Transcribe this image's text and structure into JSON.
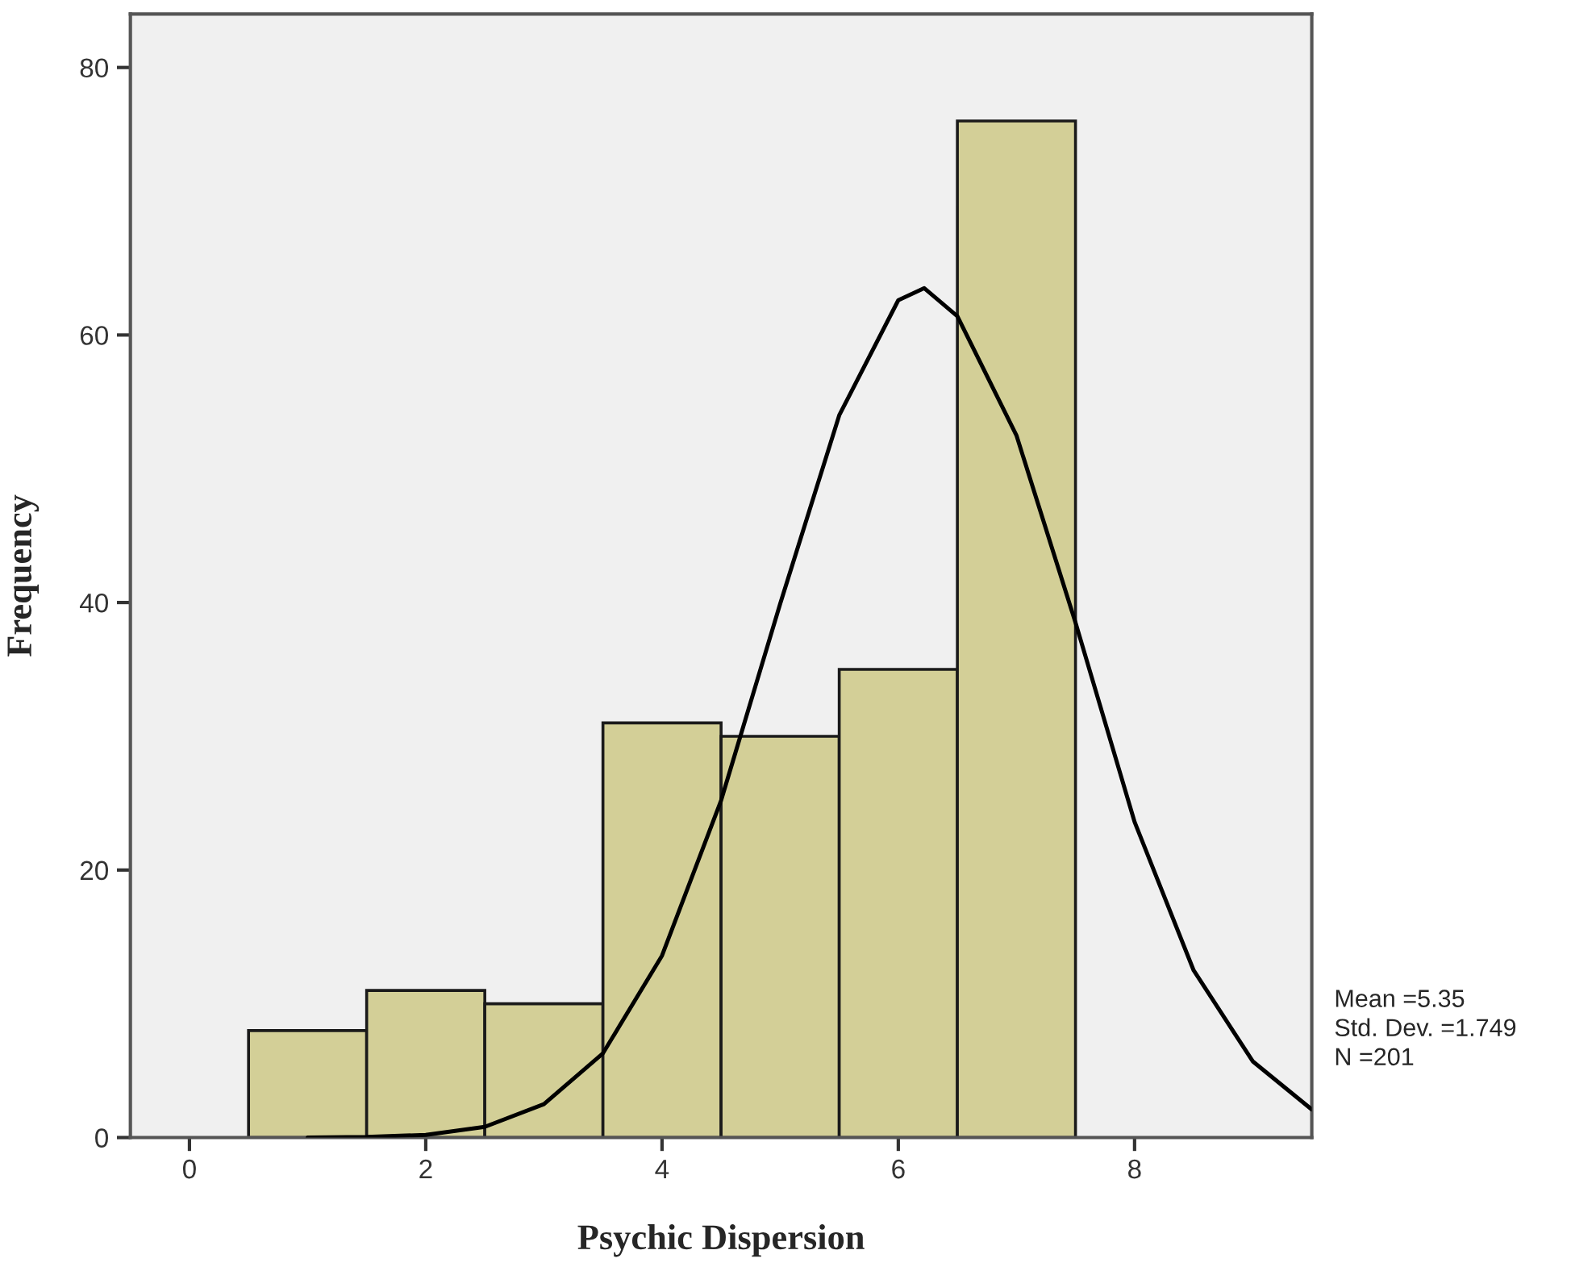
{
  "chart_data": {
    "type": "histogram",
    "xlabel": "Psychic Dispersion",
    "ylabel": "Frequency",
    "bins": [
      0.5,
      1.5,
      2.5,
      3.5,
      4.5,
      5.5,
      6.5,
      7.5
    ],
    "values": [
      8,
      11,
      10,
      31,
      30,
      35,
      76
    ],
    "color": "#d3cf97",
    "series": [
      {
        "type": "line",
        "color": "#000000",
        "x": [
          1.0,
          1.5,
          2.0,
          2.5,
          3.0,
          3.5,
          4.0,
          4.5,
          5.0,
          5.5,
          6.0,
          6.22,
          6.5,
          7.0,
          7.5,
          8.0,
          8.5,
          9.0,
          9.5
        ],
        "values": [
          0,
          0.05,
          0.2,
          0.8,
          2.5,
          6.3,
          13.6,
          25.2,
          39.9,
          54,
          62.6,
          63.5,
          61.4,
          52.5,
          38.5,
          23.6,
          12.5,
          5.7,
          2.1
        ]
      }
    ],
    "xlim": [
      -0.5,
      9.5
    ],
    "xticks": [
      0,
      2,
      4,
      6,
      8
    ],
    "ylim": [
      0,
      84
    ],
    "yticks": [
      0,
      20,
      40,
      60,
      80
    ],
    "grid": false,
    "legend": false,
    "annotations": [
      "Mean =5.35",
      "Std. Dev. =1.749",
      "N =201"
    ]
  }
}
